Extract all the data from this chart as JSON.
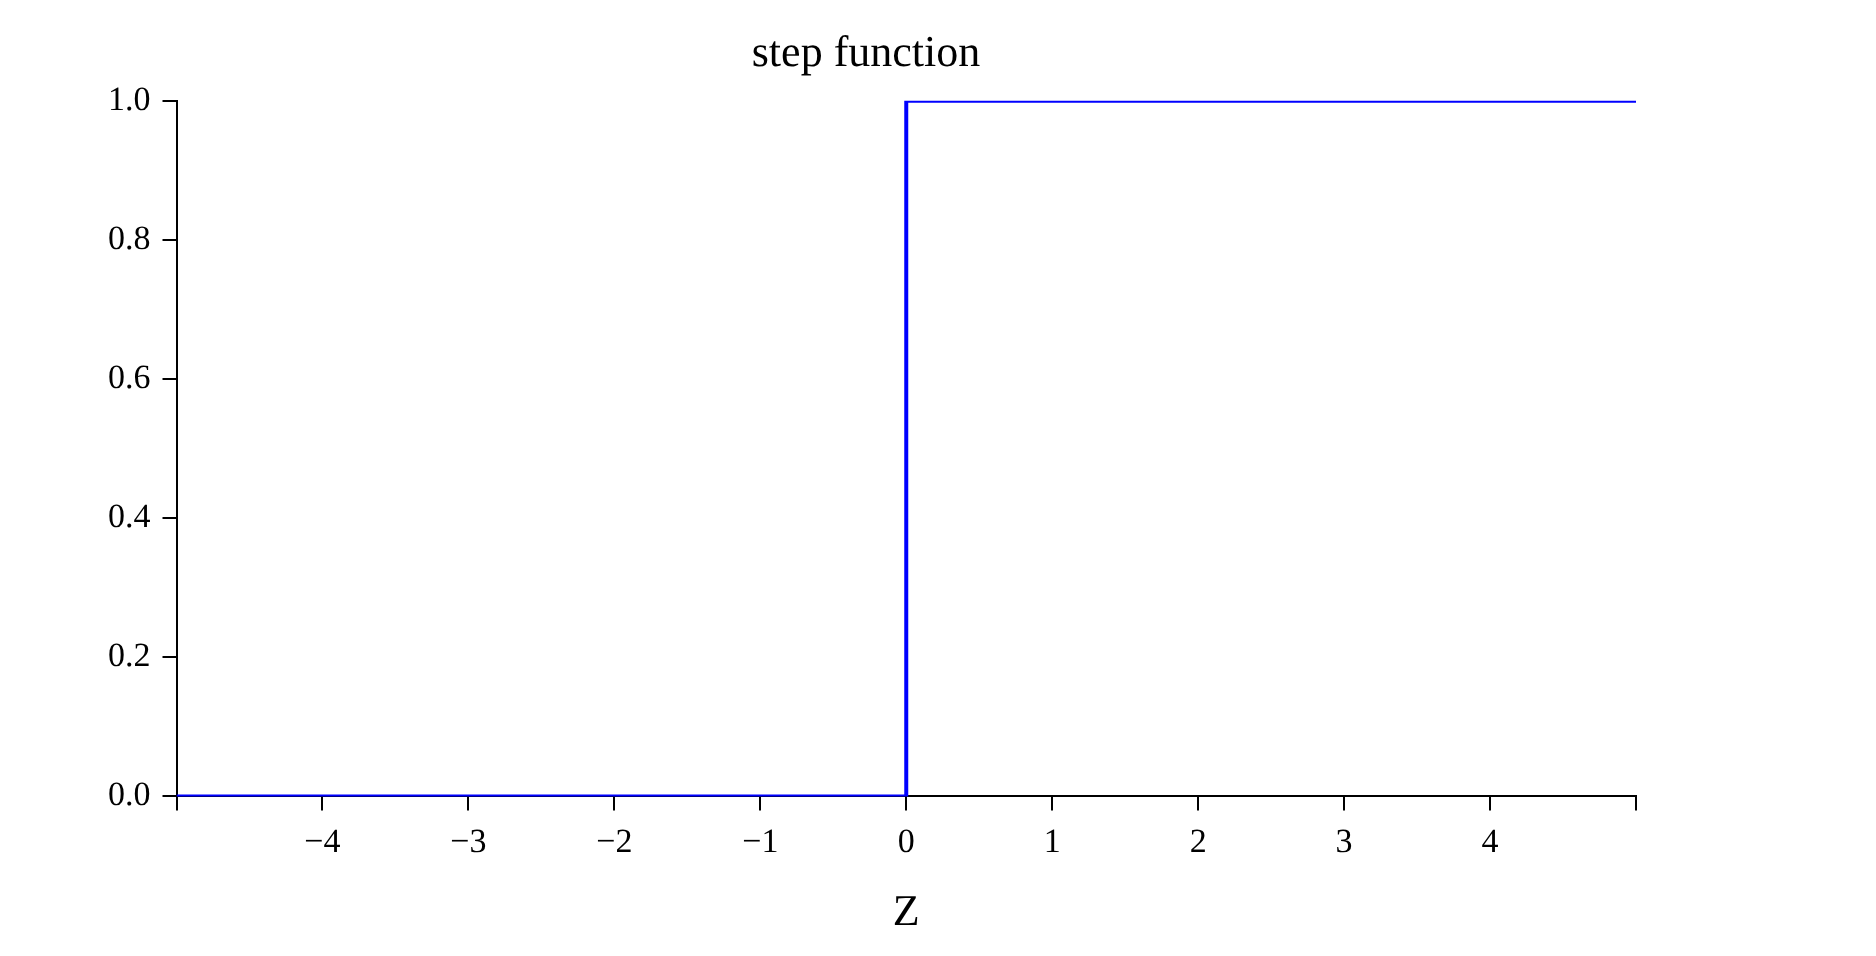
{
  "chart_data": {
    "type": "step",
    "title": "step function",
    "xlabel": "Z",
    "x": [
      -5,
      0,
      5
    ],
    "series": [
      {
        "color": "#0000ff",
        "values": [
          0,
          1,
          1
        ]
      }
    ],
    "xlim": [
      -5,
      5
    ],
    "xticks": [
      {
        "value": -5,
        "label": null
      },
      {
        "value": -4,
        "label": "−4"
      },
      {
        "value": -3,
        "label": "−3"
      },
      {
        "value": -2,
        "label": "−2"
      },
      {
        "value": -1,
        "label": "−1"
      },
      0,
      1,
      2,
      3,
      4,
      {
        "value": 5,
        "label": null
      }
    ],
    "ylim": [
      0,
      1
    ],
    "yticks": [
      {
        "value": 0,
        "label": "0.0"
      },
      {
        "value": 0.2,
        "label": "0.2"
      },
      {
        "value": 0.4,
        "label": "0.4"
      },
      {
        "value": 0.6,
        "label": "0.6"
      },
      {
        "value": 0.8,
        "label": "0.8"
      },
      {
        "value": 1,
        "label": "1.0"
      }
    ],
    "grid": false,
    "legend": false
  }
}
